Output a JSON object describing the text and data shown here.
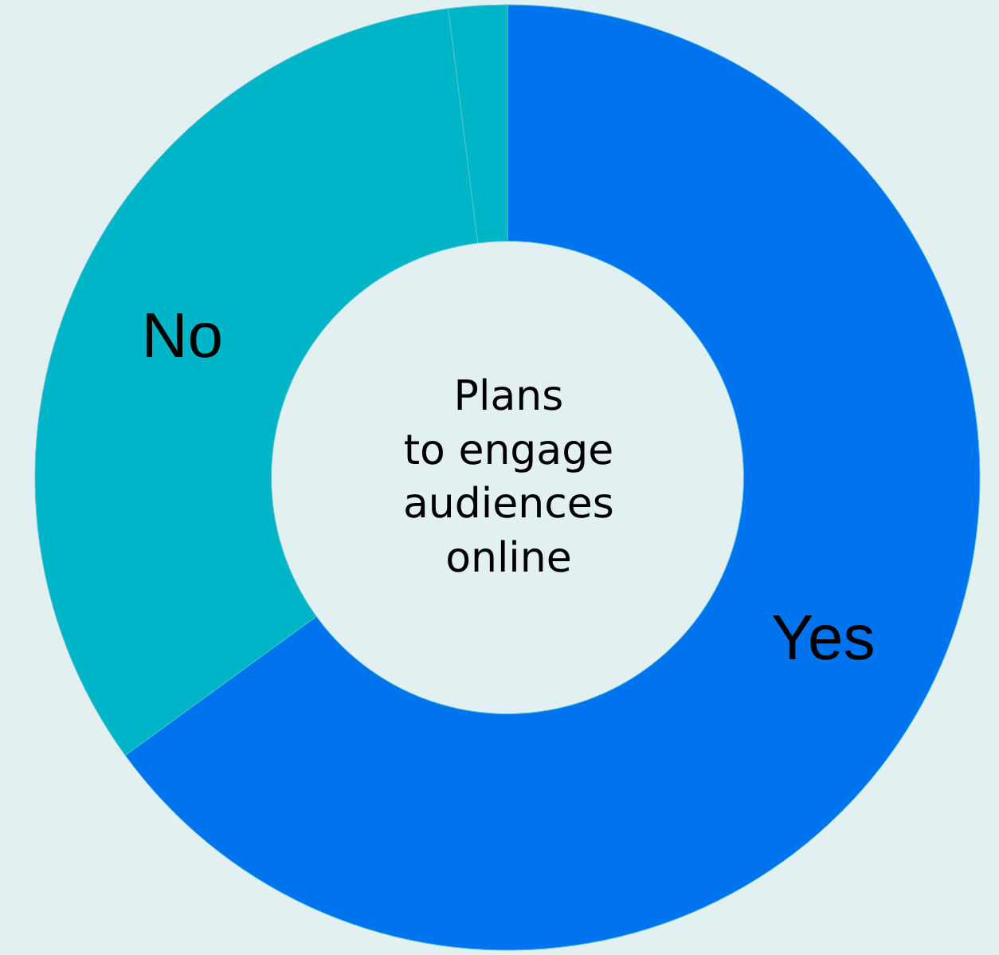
{
  "chart_data": {
    "type": "donut",
    "title": "Plans\nto engage\naudiences\nonline",
    "categories": [
      "Yes",
      "No",
      null
    ],
    "values": [
      65,
      33,
      2
    ],
    "colors": [
      "#0073ee",
      "#00b5c8",
      "#00b5c8"
    ],
    "legend": false
  }
}
